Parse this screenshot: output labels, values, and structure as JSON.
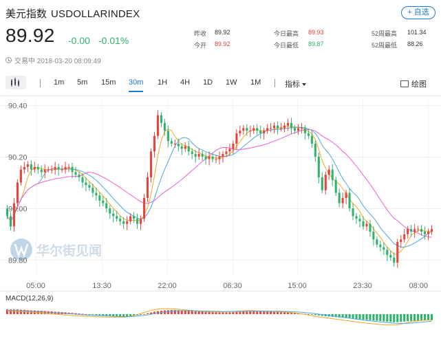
{
  "header": {
    "name": "美元指数",
    "code": "USDOLLARINDEX",
    "watch_label": "+ 自选",
    "price": "89.92",
    "change_abs": "-0.00",
    "change_pct": "-0.01%",
    "status": "交易中 2018-03-20 08:09:49"
  },
  "stats": [
    {
      "label": "昨收",
      "value": "89.92",
      "color": "normal"
    },
    {
      "label": "今开",
      "value": "89.92",
      "color": "red"
    },
    {
      "label": "今日最高",
      "value": "89.93",
      "color": "red"
    },
    {
      "label": "今日最低",
      "value": "89.87",
      "color": "green"
    },
    {
      "label": "52周最高",
      "value": "101.34",
      "color": "normal"
    },
    {
      "label": "52周最低",
      "value": "88.26",
      "color": "normal"
    }
  ],
  "toolbar": {
    "periods": [
      "1m",
      "5m",
      "15m",
      "30m",
      "1H",
      "4H",
      "1D",
      "1W",
      "1M"
    ],
    "active_period": "30m",
    "indicator_label": "指标",
    "draw_label": "绘图"
  },
  "watermark": "华尔街见闻",
  "colors": {
    "up": "#e8443b",
    "down": "#2fb36c",
    "accent": "#1a78d8",
    "ma_fast": "#f5a623",
    "ma_mid": "#4aa8e0",
    "ma_slow": "#ec5fd0",
    "macd_dif": "#f5a623",
    "macd_dea": "#4aa8e0"
  },
  "chart_data": {
    "type": "candlestick",
    "y_tick_labels": [
      "90.40",
      "90.20",
      "90.00",
      "89.80"
    ],
    "x_tick_labels": [
      "05:00",
      "13:30",
      "22:00",
      "06:30",
      "15:00",
      "23:30",
      "08:00"
    ],
    "ylim": [
      89.74,
      90.42
    ],
    "grid": true,
    "close": [
      89.97,
      89.93,
      90.02,
      90.1,
      90.15,
      90.16,
      90.17,
      90.15,
      90.16,
      90.15,
      90.14,
      90.15,
      90.15,
      90.15,
      90.16,
      90.15,
      90.15,
      90.16,
      90.16,
      90.14,
      90.13,
      90.12,
      90.1,
      90.09,
      90.08,
      90.06,
      90.05,
      90.03,
      90.02,
      90.0,
      89.98,
      89.97,
      89.96,
      89.95,
      89.94,
      89.95,
      89.97,
      89.96,
      89.94,
      89.96,
      90.04,
      90.12,
      90.22,
      90.28,
      90.36,
      90.33,
      90.3,
      90.26,
      90.25,
      90.25,
      90.24,
      90.23,
      90.24,
      90.22,
      90.21,
      90.2,
      90.21,
      90.2,
      90.19,
      90.2,
      90.19,
      90.19,
      90.2,
      90.21,
      90.22,
      90.23,
      90.25,
      90.29,
      90.3,
      90.31,
      90.3,
      90.3,
      90.31,
      90.3,
      90.29,
      90.3,
      90.31,
      90.31,
      90.32,
      90.31,
      90.31,
      90.32,
      90.33,
      90.31,
      90.3,
      90.31,
      90.31,
      90.29,
      90.28,
      90.25,
      90.2,
      90.12,
      90.07,
      90.13,
      90.15,
      90.11,
      90.06,
      90.02,
      90.04,
      90.06,
      90.0,
      89.97,
      89.96,
      89.95,
      89.93,
      89.94,
      89.91,
      89.88,
      89.86,
      89.85,
      89.84,
      89.82,
      89.81,
      89.79,
      89.87,
      89.88,
      89.9,
      89.92,
      89.91,
      89.92,
      89.92,
      89.91,
      89.9,
      89.91,
      89.92
    ],
    "macd": {
      "label": "MACD(12,26,9)",
      "histogram": [
        0.031,
        0.031,
        0.031,
        0.031,
        0.029,
        0.028,
        0.026,
        0.025,
        0.024,
        0.023,
        0.022,
        0.021,
        0.019,
        0.018,
        0.016,
        0.015,
        0.013,
        0.012,
        0.01,
        0.008,
        0.006,
        0.004,
        0.002,
        0.0,
        -0.002,
        -0.004,
        -0.006,
        -0.008,
        -0.01,
        -0.012,
        -0.013,
        -0.014,
        -0.015,
        -0.016,
        -0.016,
        -0.015,
        -0.013,
        -0.011,
        -0.008,
        -0.004,
        0.001,
        0.006,
        0.011,
        0.016,
        0.02,
        0.023,
        0.025,
        0.026,
        0.027,
        0.027,
        0.026,
        0.025,
        0.024,
        0.022,
        0.021,
        0.019,
        0.018,
        0.016,
        0.015,
        0.014,
        0.013,
        0.012,
        0.012,
        0.012,
        0.012,
        0.012,
        0.013,
        0.014,
        0.015,
        0.016,
        0.017,
        0.018,
        0.018,
        0.018,
        0.018,
        0.017,
        0.017,
        0.016,
        0.015,
        0.014,
        0.013,
        0.012,
        0.011,
        0.009,
        0.008,
        0.006,
        0.004,
        0.002,
        0.0,
        -0.003,
        -0.006,
        -0.009,
        -0.012,
        -0.014,
        -0.016,
        -0.018,
        -0.02,
        -0.022,
        -0.024,
        -0.026,
        -0.028,
        -0.03,
        -0.032,
        -0.034,
        -0.036,
        -0.038,
        -0.04,
        -0.042,
        -0.044,
        -0.046,
        -0.048,
        -0.05,
        -0.052,
        -0.054,
        -0.053,
        -0.051,
        -0.049,
        -0.047,
        -0.046,
        -0.045,
        -0.044,
        -0.043,
        -0.042,
        -0.041,
        -0.04
      ],
      "dif": [
        0.02,
        0.02,
        0.019,
        0.018,
        0.017,
        0.016,
        0.014,
        0.013,
        0.012,
        0.01,
        0.008,
        0.006,
        0.004,
        0.002,
        0.0,
        -0.002,
        -0.004,
        -0.006,
        -0.008,
        -0.01,
        -0.011,
        -0.012,
        -0.013,
        -0.014,
        -0.015,
        -0.016,
        -0.017,
        -0.018,
        -0.018,
        -0.019,
        -0.02,
        -0.02,
        -0.021,
        -0.021,
        -0.02,
        -0.018,
        -0.014,
        -0.009,
        -0.003,
        0.004,
        0.011,
        0.018,
        0.024,
        0.029,
        0.033,
        0.035,
        0.036,
        0.036,
        0.035,
        0.034,
        0.032,
        0.03,
        0.028,
        0.026,
        0.024,
        0.022,
        0.02,
        0.018,
        0.017,
        0.016,
        0.015,
        0.015,
        0.015,
        0.015,
        0.016,
        0.017,
        0.018,
        0.02,
        0.021,
        0.022,
        0.023,
        0.023,
        0.023,
        0.022,
        0.021,
        0.02,
        0.019,
        0.018,
        0.017,
        0.016,
        0.015,
        0.014,
        0.012,
        0.01,
        0.008,
        0.005,
        0.002,
        -0.002,
        -0.006,
        -0.01,
        -0.014,
        -0.018,
        -0.021,
        -0.024,
        -0.027,
        -0.03,
        -0.033,
        -0.036,
        -0.039,
        -0.042,
        -0.045,
        -0.048,
        -0.051,
        -0.054,
        -0.057,
        -0.06,
        -0.062,
        -0.064,
        -0.066,
        -0.068,
        -0.07,
        -0.071,
        -0.072,
        -0.072,
        -0.07,
        -0.066,
        -0.061,
        -0.056,
        -0.051,
        -0.047,
        -0.044,
        -0.042,
        -0.041,
        -0.04,
        -0.04
      ],
      "dea": [
        0.024,
        0.024,
        0.023,
        0.023,
        0.022,
        0.021,
        0.02,
        0.019,
        0.018,
        0.017,
        0.016,
        0.014,
        0.013,
        0.011,
        0.01,
        0.008,
        0.006,
        0.004,
        0.003,
        0.001,
        -0.001,
        -0.002,
        -0.004,
        -0.005,
        -0.007,
        -0.008,
        -0.009,
        -0.01,
        -0.011,
        -0.012,
        -0.013,
        -0.014,
        -0.015,
        -0.016,
        -0.016,
        -0.016,
        -0.016,
        -0.015,
        -0.013,
        -0.011,
        -0.008,
        -0.005,
        -0.001,
        0.003,
        0.007,
        0.011,
        0.014,
        0.017,
        0.019,
        0.021,
        0.022,
        0.023,
        0.023,
        0.023,
        0.023,
        0.022,
        0.022,
        0.021,
        0.02,
        0.019,
        0.019,
        0.018,
        0.018,
        0.017,
        0.017,
        0.017,
        0.017,
        0.017,
        0.018,
        0.018,
        0.019,
        0.019,
        0.02,
        0.02,
        0.02,
        0.02,
        0.02,
        0.02,
        0.019,
        0.019,
        0.018,
        0.018,
        0.017,
        0.016,
        0.015,
        0.014,
        0.012,
        0.01,
        0.008,
        0.006,
        0.003,
        0.0,
        -0.003,
        -0.006,
        -0.009,
        -0.012,
        -0.015,
        -0.018,
        -0.021,
        -0.024,
        -0.027,
        -0.03,
        -0.033,
        -0.036,
        -0.039,
        -0.042,
        -0.044,
        -0.047,
        -0.049,
        -0.052,
        -0.054,
        -0.056,
        -0.058,
        -0.06,
        -0.061,
        -0.061,
        -0.061,
        -0.06,
        -0.059,
        -0.057,
        -0.055,
        -0.053,
        -0.051,
        -0.049,
        -0.047
      ]
    }
  }
}
